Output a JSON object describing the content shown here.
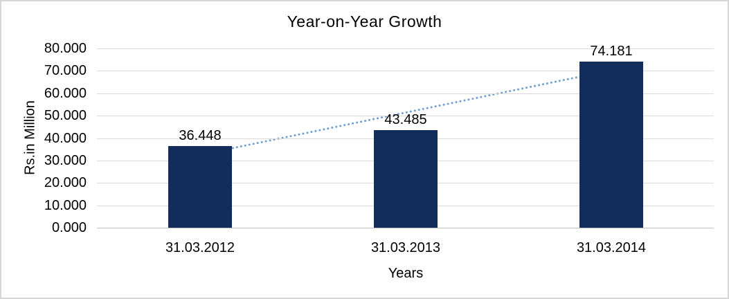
{
  "chart_data": {
    "type": "bar",
    "title": "Year-on-Year Growth",
    "xlabel": "Years",
    "ylabel": "Rs.in Million",
    "categories": [
      "31.03.2012",
      "31.03.2013",
      "31.03.2014"
    ],
    "series": [
      {
        "name": "Rs.in Million",
        "values": [
          36.448,
          43.485,
          74.181
        ],
        "data_labels": [
          "36.448",
          "43.485",
          "74.181"
        ]
      }
    ],
    "ylim": [
      0,
      80
    ],
    "ytick_step": 10,
    "ytick_labels": [
      "80.000",
      "70.000",
      "60.000",
      "50.000",
      "40.000",
      "30.000",
      "20.000",
      "10.000",
      "0.000"
    ],
    "grid": true,
    "legend": "none",
    "trendline": {
      "kind": "linear",
      "line_style": "dotted",
      "spans": "category 1 to category 3"
    },
    "colors": {
      "bar": "#122c5c",
      "trendline": "#6f9fd3",
      "gridline": "#d9d9d9",
      "axis_line": "#bfbfbf",
      "text": "#000000",
      "border": "#d6d6d6",
      "background": "#ffffff"
    }
  }
}
